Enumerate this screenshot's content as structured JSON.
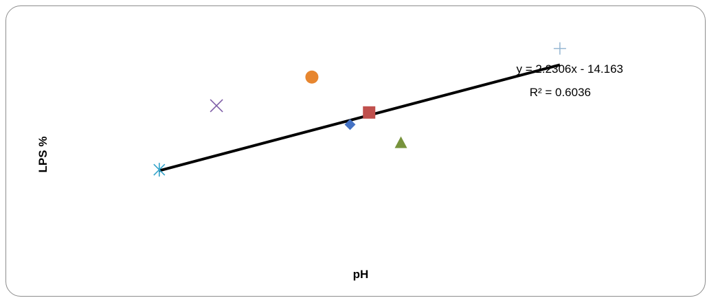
{
  "chart_data": {
    "type": "scatter",
    "xlabel": "pH",
    "ylabel": "LPS %",
    "grid": false,
    "legend": "none",
    "xlim": [
      6.96,
      7.9
    ],
    "ylim": [
      0.5,
      3.6
    ],
    "points": [
      {
        "x": 7.37,
        "y": 2.22,
        "marker": "diamond",
        "color": "#4472C4"
      },
      {
        "x": 7.4,
        "y": 2.38,
        "marker": "square",
        "color": "#C0504D"
      },
      {
        "x": 7.45,
        "y": 1.98,
        "marker": "triangle",
        "color": "#77933C"
      },
      {
        "x": 7.16,
        "y": 2.47,
        "marker": "x",
        "color": "#7F5FA8"
      },
      {
        "x": 7.07,
        "y": 1.62,
        "marker": "star",
        "color": "#31A2C9"
      },
      {
        "x": 7.31,
        "y": 2.85,
        "marker": "circle",
        "color": "#E7862F"
      },
      {
        "x": 7.7,
        "y": 3.23,
        "marker": "plus",
        "color": "#94B6D2"
      }
    ],
    "trendline": {
      "type": "linear",
      "slope": 2.2306,
      "intercept": -14.163,
      "x_range": [
        7.07,
        7.7
      ],
      "equation_label": "y = 2.2306x - 14.163",
      "r2_label": "R² = 0.6036",
      "color": "#000000"
    }
  }
}
